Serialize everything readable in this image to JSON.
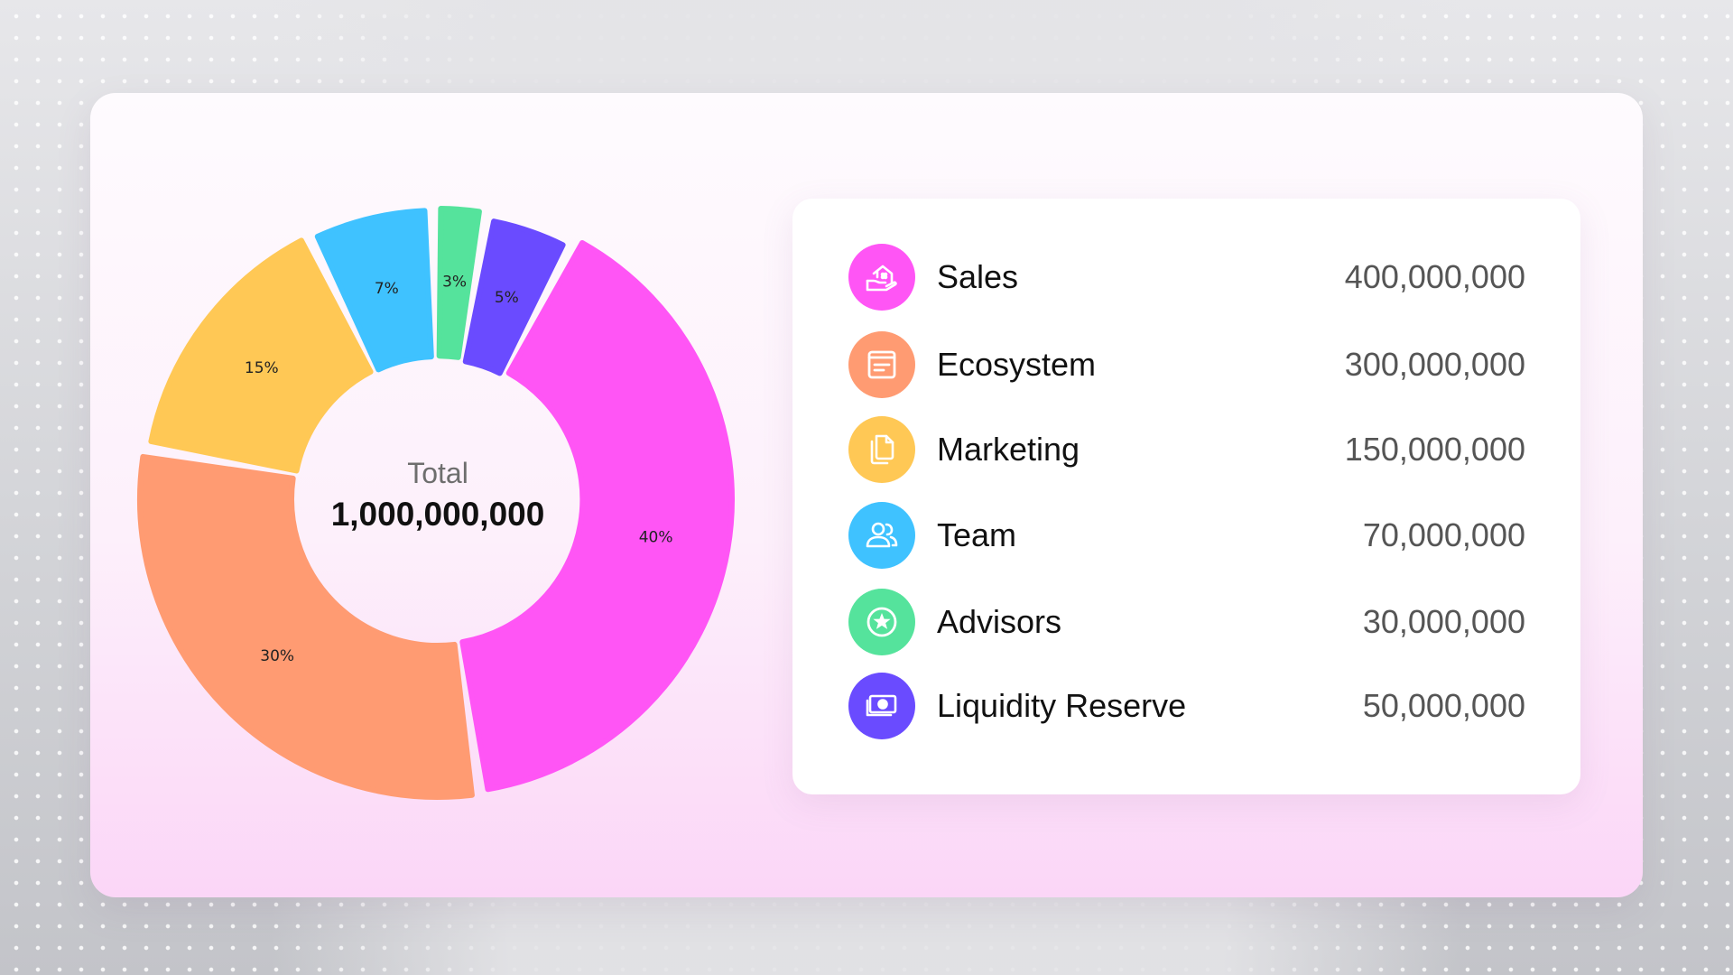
{
  "chart_data": {
    "type": "pie",
    "total_label": "Total",
    "total_value": "1,000,000,000",
    "slices": [
      {
        "name": "Sales",
        "percent": 40,
        "label": "40%",
        "value": 400000000,
        "display_value": "400,000,000",
        "color": "#ff55f5",
        "icon": "home-hand-icon"
      },
      {
        "name": "Ecosystem",
        "percent": 30,
        "label": "30%",
        "value": 300000000,
        "display_value": "300,000,000",
        "color": "#ff9b72",
        "icon": "document-icon"
      },
      {
        "name": "Marketing",
        "percent": 15,
        "label": "15%",
        "value": 150000000,
        "display_value": "150,000,000",
        "color": "#ffc855",
        "icon": "copy-pages-icon"
      },
      {
        "name": "Team",
        "percent": 7,
        "label": "7%",
        "value": 70000000,
        "display_value": "70,000,000",
        "color": "#3fc2ff",
        "icon": "users-icon"
      },
      {
        "name": "Advisors",
        "percent": 3,
        "label": "3%",
        "value": 30000000,
        "display_value": "30,000,000",
        "color": "#55e39c",
        "icon": "star-badge-icon"
      },
      {
        "name": "Liquidity Reserve",
        "percent": 5,
        "label": "5%",
        "value": 50000000,
        "display_value": "50,000,000",
        "color": "#6a4bff",
        "icon": "money-icon"
      }
    ]
  },
  "legend": {
    "rows": [
      {
        "name": "Sales",
        "value": "400,000,000"
      },
      {
        "name": "Ecosystem",
        "value": "300,000,000"
      },
      {
        "name": "Marketing",
        "value": "150,000,000"
      },
      {
        "name": "Team",
        "value": "70,000,000"
      },
      {
        "name": "Advisors",
        "value": "30,000,000"
      },
      {
        "name": "Liquidity Reserve",
        "value": "50,000,000"
      }
    ]
  }
}
